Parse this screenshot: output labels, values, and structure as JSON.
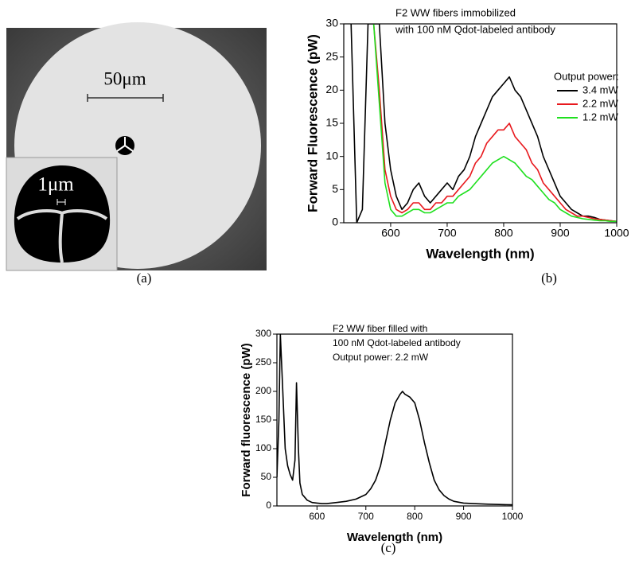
{
  "image_panel": {
    "scale_bar_label": "50μm",
    "inset_scale_bar_label": "1μm",
    "caption": "(a)"
  },
  "chart_data": [
    {
      "type": "line",
      "caption": "(b)",
      "annotations": [
        "F2 WW fibers immobilized",
        "with 100 nM Qdot-labeled antibody"
      ],
      "x_label": "Wavelength (nm)",
      "y_label": "Forward Fluorescence (pW)",
      "xlim": [
        517,
        1000
      ],
      "ylim": [
        0,
        30
      ],
      "xticks": [
        600,
        700,
        800,
        900,
        1000
      ],
      "yticks": [
        0,
        5,
        10,
        15,
        20,
        25,
        30
      ],
      "legend": "upper right",
      "legend_title": "Output power:",
      "x": [
        520,
        530,
        540,
        550,
        560,
        570,
        580,
        590,
        600,
        610,
        620,
        630,
        640,
        650,
        660,
        670,
        680,
        690,
        700,
        710,
        720,
        730,
        740,
        750,
        760,
        770,
        780,
        790,
        800,
        810,
        820,
        830,
        840,
        850,
        860,
        870,
        880,
        890,
        900,
        910,
        920,
        930,
        940,
        950,
        960,
        970,
        980,
        990,
        1000
      ],
      "series": [
        {
          "name": "3.4 mW",
          "color": "#000000",
          "values": [
            null,
            30,
            0,
            2,
            30,
            30,
            30,
            15,
            8,
            4,
            2,
            3,
            5,
            6,
            4,
            3,
            4,
            5,
            6,
            5,
            7,
            8,
            10,
            13,
            15,
            17,
            19,
            20,
            21,
            22,
            20,
            19,
            17,
            15,
            13,
            10,
            8,
            6,
            4,
            3,
            2,
            1.5,
            1,
            1,
            0.8,
            0.5,
            0.4,
            0.3,
            0.2
          ]
        },
        {
          "name": "2.2 mW",
          "color": "#e8191e",
          "values": [
            null,
            null,
            null,
            null,
            null,
            30,
            20,
            8,
            4,
            2,
            1.5,
            2,
            3,
            3,
            2,
            2,
            3,
            3,
            4,
            4,
            5,
            6,
            7,
            9,
            10,
            12,
            13,
            14,
            14,
            15,
            13,
            12,
            11,
            9,
            8,
            6,
            5,
            4,
            3,
            2,
            1.5,
            1,
            1,
            0.8,
            0.6,
            0.5,
            0.4,
            0.3,
            0.2
          ]
        },
        {
          "name": "1.2 mW",
          "color": "#1fe01f",
          "values": [
            null,
            null,
            null,
            null,
            null,
            30,
            18,
            6,
            2,
            1,
            1,
            1.5,
            2,
            2,
            1.5,
            1.5,
            2,
            2.5,
            3,
            3,
            4,
            4.5,
            5,
            6,
            7,
            8,
            9,
            9.5,
            10,
            9.5,
            9,
            8,
            7,
            6.5,
            5.5,
            4.5,
            3.5,
            3,
            2,
            1.5,
            1,
            0.8,
            0.6,
            0.5,
            0.4,
            0.3,
            0.3,
            0.2,
            0.2
          ]
        }
      ]
    },
    {
      "type": "line",
      "caption": "(c)",
      "annotations": [
        "F2 WW fiber filled with",
        "100 nM Qdot-labeled antibody",
        "Output power: 2.2 mW"
      ],
      "x_label": "Wavelength (nm)",
      "y_label": "Forward fluorescence (pW)",
      "xlim": [
        518,
        1000
      ],
      "ylim": [
        0,
        300
      ],
      "xticks": [
        600,
        700,
        800,
        900,
        1000
      ],
      "yticks": [
        0,
        50,
        100,
        150,
        200,
        250,
        300
      ],
      "x": [
        518,
        522,
        525,
        530,
        535,
        540,
        545,
        550,
        555,
        558,
        562,
        565,
        570,
        575,
        580,
        590,
        600,
        610,
        620,
        640,
        660,
        680,
        700,
        710,
        720,
        730,
        740,
        750,
        760,
        770,
        775,
        780,
        790,
        800,
        810,
        820,
        830,
        840,
        850,
        860,
        870,
        880,
        900,
        920,
        950,
        1000
      ],
      "series": [
        {
          "color": "#000000",
          "values": [
            50,
            150,
            300,
            200,
            100,
            70,
            55,
            45,
            80,
            215,
            100,
            40,
            20,
            15,
            10,
            6,
            5,
            4,
            4,
            6,
            8,
            12,
            20,
            30,
            45,
            70,
            110,
            150,
            180,
            195,
            200,
            195,
            190,
            180,
            150,
            110,
            75,
            45,
            28,
            18,
            12,
            8,
            5,
            4,
            3,
            2
          ]
        }
      ]
    }
  ]
}
